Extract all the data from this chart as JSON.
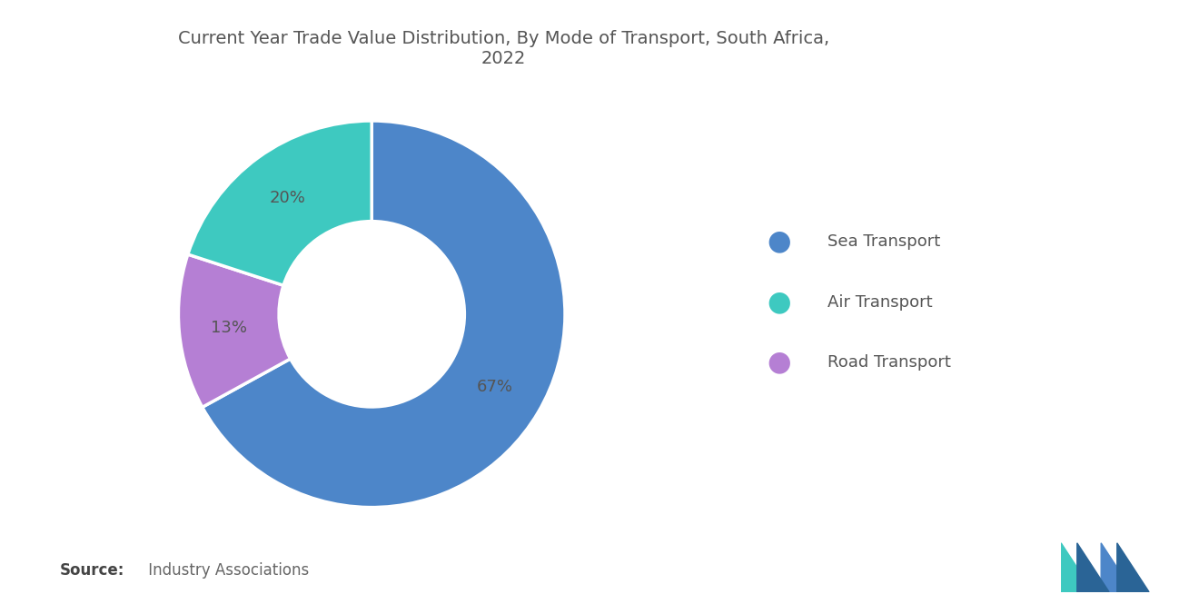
{
  "title": "Current Year Trade Value Distribution, By Mode of Transport, South Africa,\n2022",
  "slices": [
    67,
    13,
    20
  ],
  "slice_order_labels": [
    "Sea Transport",
    "Road Transport",
    "Air Transport"
  ],
  "colors": [
    "#4D86C9",
    "#B57FD4",
    "#3EC9C0"
  ],
  "pct_labels": [
    "67%",
    "13%",
    "20%"
  ],
  "legend_order": [
    0,
    2,
    1
  ],
  "legend_labels": [
    "Sea Transport",
    "Air Transport",
    "Road Transport"
  ],
  "legend_colors": [
    "#4D86C9",
    "#3EC9C0",
    "#B57FD4"
  ],
  "source_bold": "Source:",
  "source_normal": " Industry Associations",
  "background_color": "#FFFFFF",
  "title_color": "#555555",
  "label_color": "#555555",
  "title_fontsize": 14,
  "pct_fontsize": 13,
  "legend_fontsize": 13,
  "source_fontsize": 12
}
